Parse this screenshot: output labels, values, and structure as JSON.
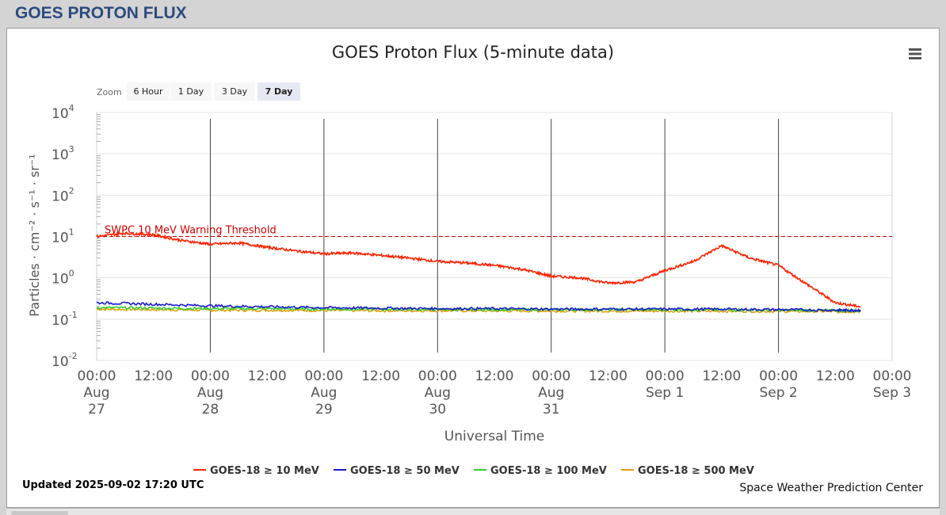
{
  "page": {
    "title": "GOES PROTON FLUX"
  },
  "chart_data": {
    "type": "line",
    "title": "GOES Proton Flux (5-minute data)",
    "xlabel": "Universal Time",
    "ylabel": "Particles · cm⁻² · s⁻¹ · sr⁻¹",
    "y_scale": "log",
    "ylim": [
      0.01,
      10000
    ],
    "y_ticks": [
      {
        "base": "10",
        "exp": "4"
      },
      {
        "base": "10",
        "exp": "3"
      },
      {
        "base": "10",
        "exp": "2"
      },
      {
        "base": "10",
        "exp": "1"
      },
      {
        "base": "10",
        "exp": "0"
      },
      {
        "base": "10",
        "exp": "-1"
      },
      {
        "base": "10",
        "exp": "-2"
      }
    ],
    "xlim": [
      "2025-08-27 00:00",
      "2025-09-03 00:00"
    ],
    "x_ticks": [
      {
        "t": "2025-08-27 00:00",
        "lines": [
          "00:00",
          "Aug",
          "27"
        ]
      },
      {
        "t": "2025-08-27 12:00",
        "lines": [
          "12:00"
        ]
      },
      {
        "t": "2025-08-28 00:00",
        "lines": [
          "00:00",
          "Aug",
          "28"
        ]
      },
      {
        "t": "2025-08-28 12:00",
        "lines": [
          "12:00"
        ]
      },
      {
        "t": "2025-08-29 00:00",
        "lines": [
          "00:00",
          "Aug",
          "29"
        ]
      },
      {
        "t": "2025-08-29 12:00",
        "lines": [
          "12:00"
        ]
      },
      {
        "t": "2025-08-30 00:00",
        "lines": [
          "00:00",
          "Aug",
          "30"
        ]
      },
      {
        "t": "2025-08-30 12:00",
        "lines": [
          "12:00"
        ]
      },
      {
        "t": "2025-08-31 00:00",
        "lines": [
          "00:00",
          "Aug",
          "31"
        ]
      },
      {
        "t": "2025-08-31 12:00",
        "lines": [
          "12:00"
        ]
      },
      {
        "t": "2025-09-01 00:00",
        "lines": [
          "00:00",
          "Sep 1"
        ]
      },
      {
        "t": "2025-09-01 12:00",
        "lines": [
          "12:00"
        ]
      },
      {
        "t": "2025-09-02 00:00",
        "lines": [
          "00:00",
          "Sep 2"
        ]
      },
      {
        "t": "2025-09-02 12:00",
        "lines": [
          "12:00"
        ]
      },
      {
        "t": "2025-09-03 00:00",
        "lines": [
          "00:00",
          "Sep 3"
        ]
      }
    ],
    "day_gridlines": [
      "2025-08-28 00:00",
      "2025-08-29 00:00",
      "2025-08-30 00:00",
      "2025-08-31 00:00",
      "2025-09-01 00:00",
      "2025-09-02 00:00"
    ],
    "threshold": {
      "label": "SWPC 10 MeV Warning Threshold",
      "value": 10,
      "color": "#cc0000"
    },
    "grid": true,
    "legend_position": "bottom",
    "series": [
      {
        "name": "GOES-18 ≥ 10 MeV",
        "color": "#ff2200",
        "x": [
          "2025-08-27 00:00",
          "2025-08-27 06:00",
          "2025-08-27 12:00",
          "2025-08-27 18:00",
          "2025-08-28 00:00",
          "2025-08-28 06:00",
          "2025-08-28 12:00",
          "2025-08-28 18:00",
          "2025-08-29 00:00",
          "2025-08-29 06:00",
          "2025-08-29 12:00",
          "2025-08-29 18:00",
          "2025-08-30 00:00",
          "2025-08-30 06:00",
          "2025-08-30 12:00",
          "2025-08-30 18:00",
          "2025-08-31 00:00",
          "2025-08-31 06:00",
          "2025-08-31 12:00",
          "2025-08-31 18:00",
          "2025-09-01 00:00",
          "2025-09-01 06:00",
          "2025-09-01 12:00",
          "2025-09-01 18:00",
          "2025-09-02 00:00",
          "2025-09-02 06:00",
          "2025-09-02 12:00",
          "2025-09-02 17:20"
        ],
        "values": [
          10,
          12,
          11,
          8,
          6.5,
          7,
          5.5,
          4.5,
          3.8,
          4,
          3.5,
          3.0,
          2.5,
          2.3,
          2.0,
          1.6,
          1.1,
          1.0,
          0.75,
          0.8,
          1.5,
          2.5,
          6.0,
          3.0,
          2.0,
          0.7,
          0.25,
          0.2
        ]
      },
      {
        "name": "GOES-18 ≥ 50 MeV",
        "color": "#1a1acc",
        "x": [
          "2025-08-27 00:00",
          "2025-08-27 12:00",
          "2025-08-28 00:00",
          "2025-08-28 12:00",
          "2025-08-29 00:00",
          "2025-08-29 12:00",
          "2025-08-30 00:00",
          "2025-08-30 12:00",
          "2025-08-31 00:00",
          "2025-08-31 12:00",
          "2025-09-01 00:00",
          "2025-09-01 12:00",
          "2025-09-02 00:00",
          "2025-09-02 12:00",
          "2025-09-02 17:20"
        ],
        "values": [
          0.25,
          0.23,
          0.21,
          0.2,
          0.19,
          0.185,
          0.18,
          0.18,
          0.175,
          0.175,
          0.175,
          0.175,
          0.17,
          0.165,
          0.165
        ]
      },
      {
        "name": "GOES-18 ≥ 100 MeV",
        "color": "#33cc33",
        "x": [
          "2025-08-27 00:00",
          "2025-08-27 12:00",
          "2025-08-28 00:00",
          "2025-08-28 12:00",
          "2025-08-29 00:00",
          "2025-08-29 12:00",
          "2025-08-30 00:00",
          "2025-08-30 12:00",
          "2025-08-31 00:00",
          "2025-08-31 12:00",
          "2025-09-01 00:00",
          "2025-09-01 12:00",
          "2025-09-02 00:00",
          "2025-09-02 12:00",
          "2025-09-02 17:20"
        ],
        "values": [
          0.19,
          0.185,
          0.18,
          0.18,
          0.175,
          0.175,
          0.172,
          0.17,
          0.17,
          0.17,
          0.17,
          0.168,
          0.165,
          0.162,
          0.16
        ]
      },
      {
        "name": "GOES-18 ≥ 500 MeV",
        "color": "#e0a010",
        "x": [
          "2025-08-27 00:00",
          "2025-08-27 12:00",
          "2025-08-28 00:00",
          "2025-08-28 12:00",
          "2025-08-29 00:00",
          "2025-08-29 12:00",
          "2025-08-30 00:00",
          "2025-08-30 12:00",
          "2025-08-31 00:00",
          "2025-08-31 12:00",
          "2025-09-01 00:00",
          "2025-09-01 12:00",
          "2025-09-02 00:00",
          "2025-09-02 12:00",
          "2025-09-02 17:20"
        ],
        "values": [
          0.175,
          0.17,
          0.165,
          0.165,
          0.162,
          0.16,
          0.16,
          0.158,
          0.158,
          0.157,
          0.157,
          0.156,
          0.155,
          0.153,
          0.152
        ]
      }
    ]
  },
  "zoom": {
    "label": "Zoom",
    "buttons": [
      {
        "label": "6 Hour",
        "active": false
      },
      {
        "label": "1 Day",
        "active": false
      },
      {
        "label": "3 Day",
        "active": false
      },
      {
        "label": "7 Day",
        "active": true
      }
    ]
  },
  "footer": {
    "updated": "Updated 2025-09-02 17:20 UTC",
    "credit": "Space Weather Prediction Center"
  },
  "menu": {
    "icon": "hamburger-menu-icon"
  }
}
